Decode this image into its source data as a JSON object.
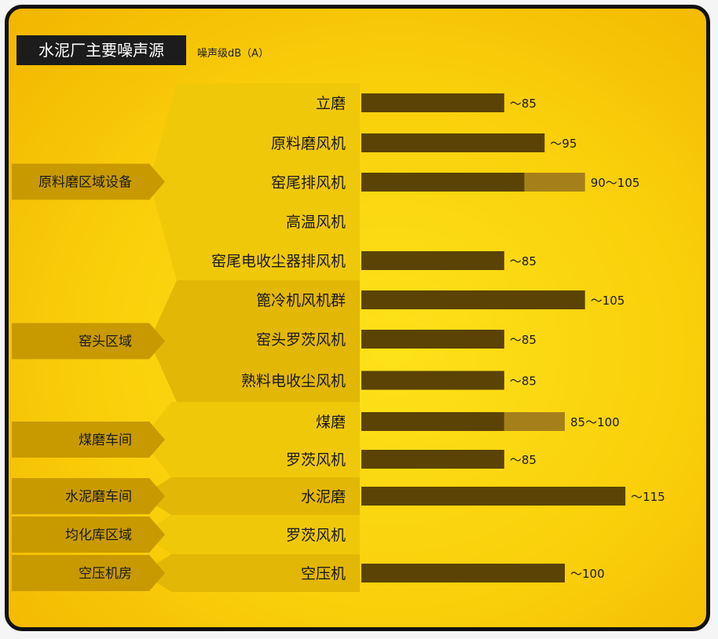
{
  "title": "水泥厂主要噪声源",
  "unit_label": "噪声级dB（A）",
  "colors": {
    "bar": "#5b4306",
    "bar_range": "#a5801a",
    "group_light": "#f0c80a",
    "group_dark": "#e3b705",
    "label_band": "#c89a00"
  },
  "chart_data": {
    "type": "bar",
    "orientation": "horizontal",
    "title": "水泥厂主要噪声源",
    "xlabel": "噪声级dB（A）",
    "groups": [
      {
        "name": "原料磨区域设备",
        "items": [
          0,
          1,
          2,
          3,
          4
        ]
      },
      {
        "name": "窑头区域",
        "items": [
          5,
          6,
          7
        ]
      },
      {
        "name": "煤磨车间",
        "items": [
          8,
          9
        ]
      },
      {
        "name": "水泥磨车间",
        "items": [
          10
        ]
      },
      {
        "name": "均化库区域",
        "items": [
          11
        ]
      },
      {
        "name": "空压机房",
        "items": [
          12
        ]
      }
    ],
    "categories": [
      "立磨",
      "原料磨风机",
      "窑尾排风机",
      "高温风机",
      "窑尾电收尘器排风机",
      "篦冷机风机群",
      "窑头罗茨风机",
      "熟料电收尘风机",
      "煤磨",
      "罗茨风机",
      "水泥磨",
      "罗茨风机",
      "空压机"
    ],
    "values_min": [
      85,
      95,
      90,
      null,
      85,
      105,
      85,
      85,
      85,
      85,
      115,
      null,
      100
    ],
    "values_max": [
      85,
      95,
      105,
      null,
      85,
      105,
      85,
      85,
      100,
      85,
      115,
      null,
      100
    ],
    "value_labels": [
      "～85",
      "～95",
      "90～105",
      "",
      "～85",
      "～105",
      "～85",
      "～85",
      "85～100",
      "～85",
      "～115",
      "",
      "～100"
    ]
  }
}
